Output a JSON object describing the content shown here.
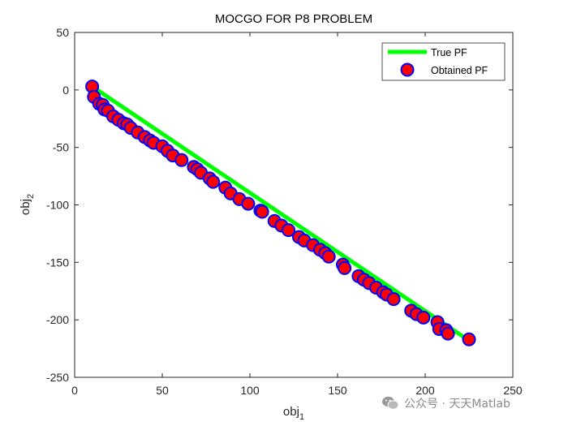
{
  "chart_data": {
    "type": "scatter",
    "title": "MOCGO FOR P8 PROBLEM",
    "xlabel": {
      "base": "obj",
      "sub": "1"
    },
    "ylabel": {
      "base": "obj",
      "sub": "2"
    },
    "xlim": [
      0,
      250
    ],
    "ylim": [
      -250,
      50
    ],
    "xticks": [
      0,
      50,
      100,
      150,
      200,
      250
    ],
    "yticks": [
      -250,
      -200,
      -150,
      -100,
      -50,
      0,
      50
    ],
    "grid": false,
    "legend_position": "top-right",
    "series": [
      {
        "name": "True PF",
        "kind": "line",
        "color": "#00ff00",
        "x": [
          10,
          225
        ],
        "y": [
          3,
          -218
        ]
      },
      {
        "name": "Obtained PF",
        "kind": "marker",
        "marker_fill": "#ff0000",
        "marker_edge": "#0000ff",
        "x": [
          10,
          11,
          14,
          16,
          17,
          19,
          22,
          25,
          28,
          30,
          32,
          36,
          40,
          43,
          45,
          50,
          53,
          56,
          61,
          68,
          70,
          72,
          77,
          79,
          86,
          89,
          94,
          99,
          106,
          107,
          114,
          118,
          122,
          128,
          131,
          136,
          140,
          143,
          145,
          153,
          154,
          162,
          165,
          168,
          172,
          176,
          178,
          182,
          192,
          195,
          199,
          207,
          208,
          212,
          213,
          225
        ],
        "y": [
          3,
          -6,
          -12,
          -13,
          -17,
          -18,
          -23,
          -26,
          -29,
          -30,
          -33,
          -37,
          -41,
          -44,
          -46,
          -49,
          -53,
          -57,
          -61,
          -67,
          -69,
          -72,
          -77,
          -80,
          -85,
          -90,
          -95,
          -99,
          -105,
          -106,
          -114,
          -118,
          -122,
          -128,
          -131,
          -135,
          -139,
          -142,
          -145,
          -152,
          -155,
          -162,
          -165,
          -168,
          -172,
          -176,
          -178,
          -182,
          -192,
          -195,
          -198,
          -202,
          -208,
          -209,
          -212,
          -217
        ]
      }
    ]
  },
  "watermark": {
    "text": "公众号 · 天天Matlab",
    "icon": "wechat-icon"
  }
}
